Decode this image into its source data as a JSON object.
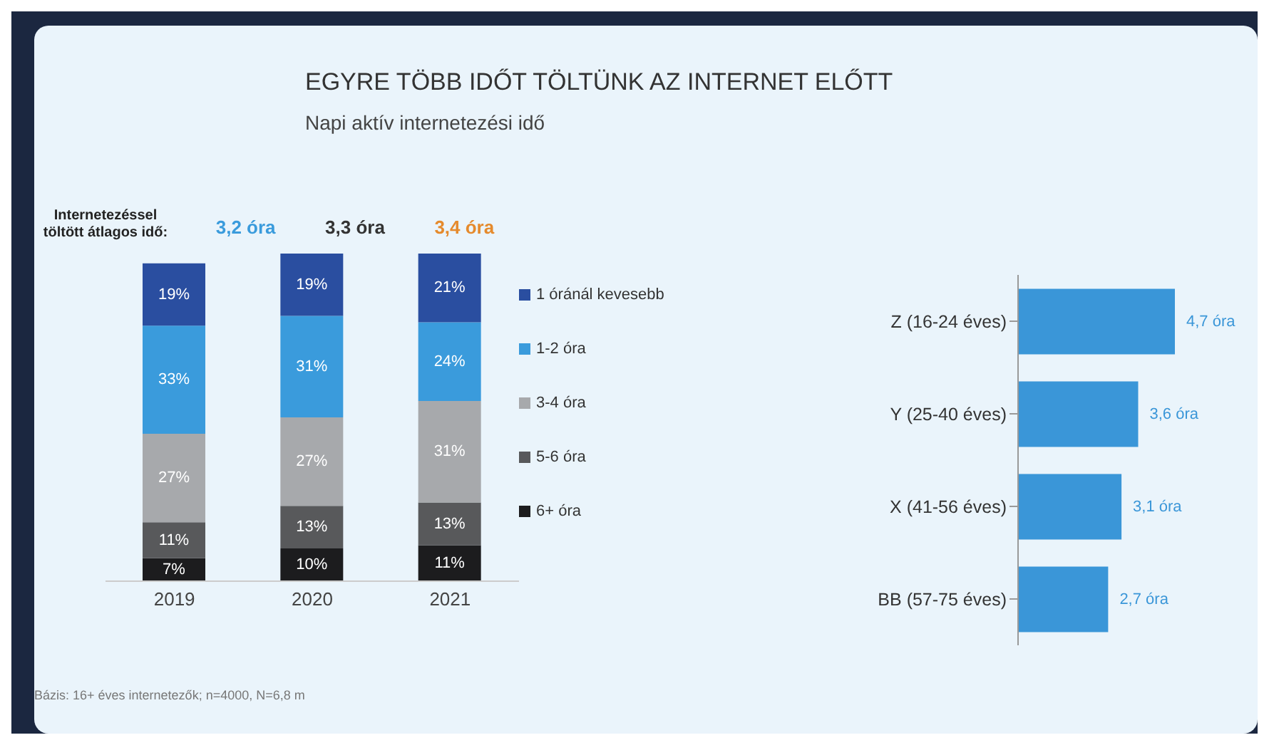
{
  "chart_data": [
    {
      "type": "bar",
      "title": "EGYRE TÖBB IDŐT TÖLTÜNK AZ INTERNET ELŐTT",
      "subtitle": "Napi aktív internetezési idő",
      "stacked": true,
      "legend": "right",
      "tick_labels": "x",
      "categories": [
        "2019",
        "2020",
        "2021"
      ],
      "series": [
        {
          "name": "6+ óra",
          "color": "#1c1c1e",
          "values": [
            7,
            10,
            11
          ],
          "value_labels": [
            "7%",
            "10%",
            "11%"
          ]
        },
        {
          "name": "5-6 óra",
          "color": "#58595b",
          "values": [
            11,
            13,
            13
          ],
          "value_labels": [
            "11%",
            "13%",
            "13%"
          ]
        },
        {
          "name": "3-4 óra",
          "color": "#a7a9ac",
          "values": [
            27,
            27,
            31
          ],
          "value_labels": [
            "27%",
            "27%",
            "31%"
          ]
        },
        {
          "name": "1-2 óra",
          "color": "#3a9bdc",
          "values": [
            33,
            31,
            24
          ],
          "value_labels": [
            "33%",
            "31%",
            "24%"
          ]
        },
        {
          "name": "1 óránál kevesebb",
          "color": "#2a4ea0",
          "values": [
            19,
            19,
            21
          ],
          "value_labels": [
            "19%",
            "19%",
            "21%"
          ]
        }
      ],
      "annotations": [
        "Internetezéssel töltött átlagos idő:",
        "3,2 óra",
        "3,3 óra",
        "3,4 óra",
        "Bázis: 16+ éves internetezők; n=4000, N=6,8 m"
      ]
    },
    {
      "type": "bar",
      "orientation": "horizontal",
      "tick_labels": "y",
      "categories": [
        "Z (16-24 éves)",
        "Y (25-40 éves)",
        "X (41-56 éves)",
        "BB (57-75 éves)"
      ],
      "values": [
        4.7,
        3.6,
        3.1,
        2.7
      ],
      "color": "#3a96d8",
      "value_labels": [
        "4,7 óra",
        "3,6 óra",
        "3,1 óra",
        "2,7 óra"
      ]
    }
  ]
}
